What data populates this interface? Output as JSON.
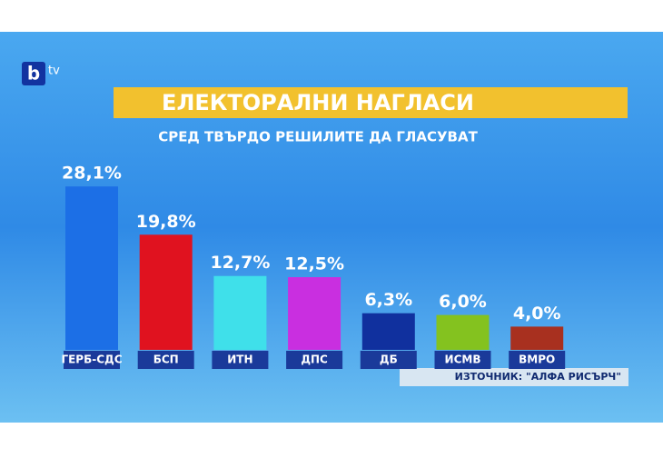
{
  "logo": {
    "mark": "b",
    "text": "tv"
  },
  "chart_data": {
    "type": "bar",
    "title": "ЕЛЕКТОРАЛНИ НАГЛАСИ",
    "subtitle": "СРЕД ТВЪРДО РЕШИЛИТЕ ДА ГЛАСУВАТ",
    "source": "ИЗТОЧНИК: \"АЛФА РИСЪРЧ\"",
    "categories": [
      "ГЕРБ-СДС",
      "БСП",
      "ИТН",
      "ДПС",
      "ДБ",
      "ИСМВ",
      "ВМРО"
    ],
    "values": [
      28.1,
      19.8,
      12.7,
      12.5,
      6.3,
      6.0,
      4.0
    ],
    "value_labels": [
      "28,1%",
      "19,8%",
      "12,7%",
      "12,5%",
      "6,3%",
      "6,0%",
      "4,0%"
    ],
    "colors": [
      "#1c6fe6",
      "#e0121f",
      "#3fe0ea",
      "#c92fe0",
      "#10309e",
      "#84c21f",
      "#a8301f"
    ]
  }
}
